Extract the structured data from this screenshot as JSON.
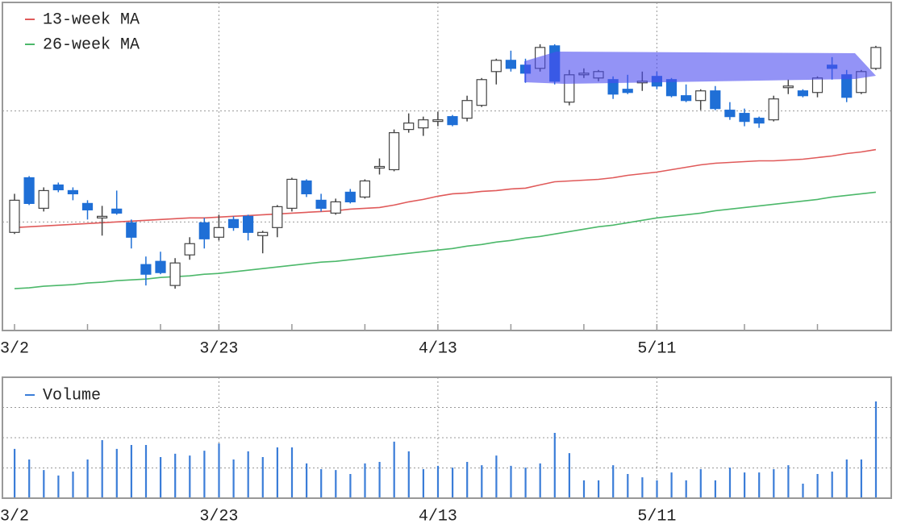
{
  "chart_data": [
    {
      "type": "candlestick",
      "categories": [
        "3/2",
        null,
        null,
        null,
        null,
        null,
        null,
        null,
        null,
        null,
        null,
        null,
        null,
        null,
        "3/23",
        null,
        null,
        null,
        null,
        null,
        null,
        null,
        null,
        null,
        null,
        null,
        null,
        null,
        null,
        "4/13",
        null,
        null,
        null,
        null,
        null,
        null,
        null,
        null,
        null,
        null,
        null,
        null,
        null,
        null,
        "5/11",
        null,
        null,
        null,
        null,
        null,
        null,
        null,
        null,
        null,
        null,
        null,
        null,
        null,
        null,
        null
      ],
      "open": [
        122,
        190,
        152,
        181,
        174,
        158,
        140,
        151,
        134,
        82,
        86,
        56,
        94,
        134,
        116,
        138,
        142,
        118,
        128,
        152,
        186,
        162,
        146,
        172,
        166,
        202,
        200,
        250,
        252,
        260,
        266,
        264,
        280,
        322,
        336,
        330,
        326,
        354,
        284,
        318,
        314,
        312,
        300,
        308,
        316,
        312,
        292,
        286,
        298,
        274,
        270,
        264,
        262,
        302,
        298,
        296,
        330,
        318,
        296,
        326
      ],
      "high": [
        170,
        192,
        178,
        184,
        178,
        162,
        155,
        174,
        138,
        92,
        98,
        90,
        116,
        140,
        144,
        142,
        144,
        124,
        156,
        190,
        188,
        170,
        164,
        176,
        188,
        214,
        250,
        270,
        266,
        272,
        268,
        292,
        314,
        338,
        348,
        338,
        356,
        356,
        324,
        326,
        324,
        316,
        318,
        322,
        322,
        314,
        306,
        300,
        304,
        284,
        276,
        266,
        292,
        312,
        300,
        316,
        340,
        324,
        324,
        354
      ],
      "low": [
        120,
        156,
        148,
        172,
        162,
        138,
        118,
        144,
        102,
        56,
        70,
        52,
        88,
        102,
        112,
        124,
        112,
        96,
        116,
        148,
        166,
        148,
        144,
        158,
        164,
        194,
        198,
        246,
        242,
        254,
        254,
        260,
        278,
        306,
        322,
        308,
        322,
        306,
        280,
        314,
        310,
        288,
        294,
        298,
        300,
        290,
        284,
        274,
        274,
        262,
        254,
        252,
        260,
        294,
        290,
        290,
        312,
        284,
        294,
        324
      ],
      "close": [
        162,
        158,
        174,
        175,
        170,
        150,
        142,
        146,
        116,
        70,
        72,
        84,
        108,
        114,
        128,
        128,
        122,
        122,
        154,
        188,
        170,
        152,
        160,
        160,
        186,
        204,
        246,
        258,
        262,
        262,
        256,
        286,
        312,
        336,
        326,
        320,
        352,
        310,
        318,
        320,
        322,
        294,
        296,
        310,
        304,
        292,
        286,
        298,
        276,
        266,
        260,
        258,
        288,
        304,
        292,
        314,
        326,
        290,
        322,
        352
      ],
      "up_color": "#ffffff",
      "down_color": "#1f6fd6",
      "series": [
        {
          "name": "13-week MA",
          "color": "#e05a5a",
          "values": [
            128,
            129,
            130,
            131,
            132,
            133,
            134,
            135,
            136,
            137,
            138,
            139,
            140,
            140,
            141,
            142,
            143,
            144,
            145,
            146,
            147,
            148,
            149,
            151,
            152,
            153,
            156,
            160,
            163,
            167,
            170,
            171,
            173,
            174,
            176,
            177,
            181,
            185,
            186,
            187,
            188,
            190,
            193,
            195,
            197,
            200,
            203,
            206,
            208,
            209,
            210,
            211,
            211,
            212,
            213,
            215,
            217,
            220,
            222,
            225
          ]
        },
        {
          "name": "26-week MA",
          "color": "#4cb86a",
          "values": [
            52,
            53,
            55,
            56,
            57,
            59,
            60,
            62,
            63,
            64,
            66,
            67,
            68,
            70,
            71,
            73,
            75,
            77,
            79,
            81,
            83,
            85,
            86,
            88,
            90,
            92,
            94,
            96,
            98,
            100,
            102,
            105,
            107,
            110,
            112,
            115,
            117,
            120,
            123,
            126,
            129,
            131,
            134,
            137,
            140,
            142,
            144,
            146,
            149,
            151,
            153,
            155,
            157,
            159,
            161,
            163,
            166,
            168,
            170,
            172
          ]
        }
      ],
      "ylim": [
        0,
        408
      ],
      "ygrid": [
        135,
        273
      ],
      "xticks": [
        0,
        5,
        10,
        14,
        19,
        24,
        29,
        34,
        39,
        44,
        50,
        55
      ],
      "grid": true
    },
    {
      "type": "bar",
      "categories": [
        "3/2",
        null,
        null,
        null,
        null,
        null,
        null,
        null,
        null,
        null,
        null,
        null,
        null,
        null,
        "3/23",
        null,
        null,
        null,
        null,
        null,
        null,
        null,
        null,
        null,
        null,
        null,
        null,
        null,
        null,
        "4/13",
        null,
        null,
        null,
        null,
        null,
        null,
        null,
        null,
        null,
        null,
        null,
        null,
        null,
        null,
        "5/11",
        null,
        null,
        null,
        null,
        null,
        null,
        null,
        null,
        null,
        null,
        null,
        null,
        null,
        null,
        null
      ],
      "series": [
        {
          "name": "Volume",
          "color": "#3b7dd8",
          "values": [
            1.63,
            1.28,
            0.93,
            0.75,
            0.88,
            1.28,
            1.92,
            1.63,
            1.76,
            1.76,
            1.36,
            1.47,
            1.41,
            1.57,
            1.81,
            1.28,
            1.55,
            1.36,
            1.68,
            1.68,
            1.15,
            0.96,
            0.93,
            0.8,
            1.15,
            1.2,
            1.87,
            1.55,
            0.96,
            1.07,
            1.01,
            1.2,
            1.09,
            1.41,
            1.07,
            1.01,
            1.15,
            2.16,
            1.49,
            0.59,
            0.59,
            1.09,
            0.8,
            0.69,
            0.59,
            0.85,
            0.59,
            0.96,
            0.59,
            1.01,
            0.85,
            0.85,
            0.96,
            1.09,
            0.48,
            0.8,
            0.88,
            1.28,
            1.28,
            3.2
          ]
        }
      ],
      "ylim": [
        0,
        4
      ],
      "ygrid": [
        1,
        2,
        3
      ],
      "grid": true
    }
  ]
}
